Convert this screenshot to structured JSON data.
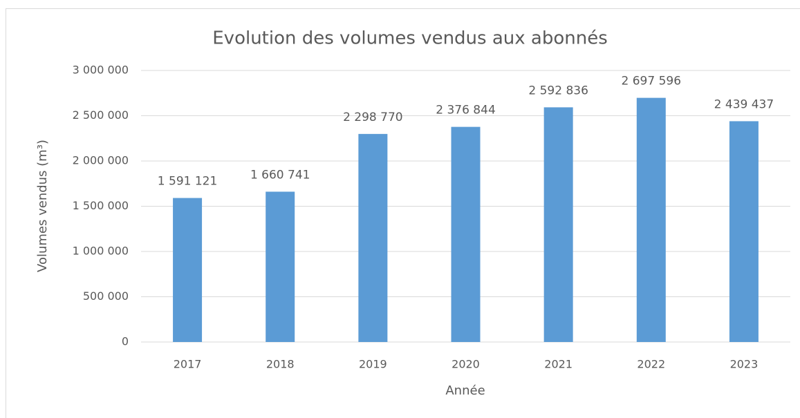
{
  "chart_data": {
    "type": "bar",
    "title": "Evolution des volumes vendus aux abonnés",
    "x_label": "Année",
    "y_label": "Volumes vendus (m³)",
    "categories": [
      "2017",
      "2018",
      "2019",
      "2020",
      "2021",
      "2022",
      "2023"
    ],
    "values": [
      1591121,
      1660741,
      2298770,
      2376844,
      2592836,
      2697596,
      2439437
    ],
    "value_labels": [
      "1 591 121",
      "1 660 741",
      "2 298 770",
      "2 376 844",
      "2 592 836",
      "2 697 596",
      "2 439 437"
    ],
    "color": "#5b9bd5",
    "ylim": [
      0,
      3000000
    ],
    "yticks": [
      0,
      {
        "value": 500000,
        "label": "500 000"
      },
      {
        "value": 1000000,
        "label": "1 000 000"
      },
      {
        "value": 1500000,
        "label": "1 500 000"
      },
      {
        "value": 2000000,
        "label": "2 000 000"
      },
      {
        "value": 2500000,
        "label": "2 500 000"
      },
      {
        "value": 3000000,
        "label": "3 000 000"
      }
    ],
    "grid": true
  }
}
